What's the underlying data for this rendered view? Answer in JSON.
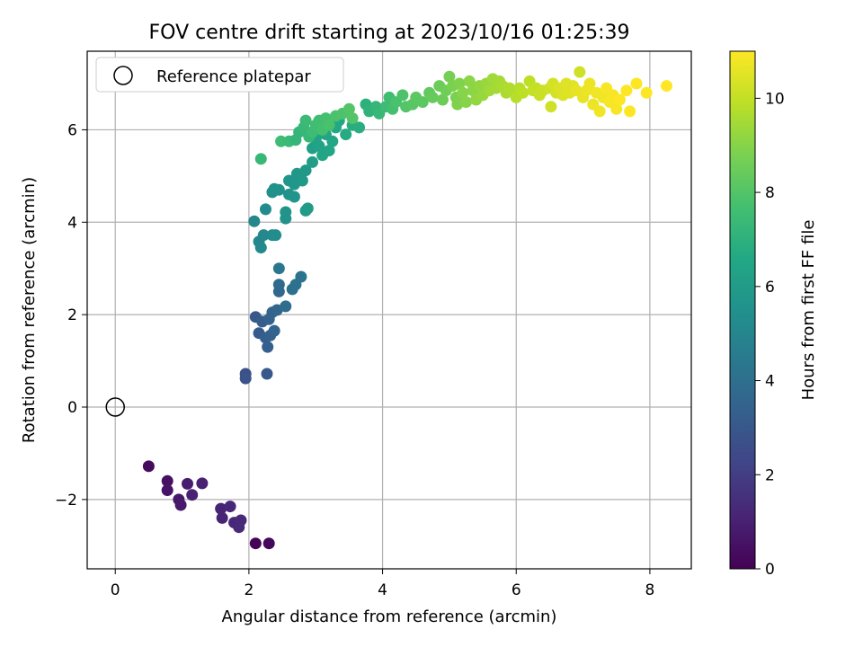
{
  "chart_data": {
    "type": "scatter",
    "title": "FOV centre drift starting at 2023/10/16 01:25:39",
    "xlabel": "Angular distance from reference (arcmin)",
    "ylabel": "Rotation from reference (arcmin)",
    "xlim": [
      -0.42,
      8.62
    ],
    "ylim": [
      -3.5,
      7.7
    ],
    "xticks": [
      0,
      2,
      4,
      6,
      8
    ],
    "yticks": [
      -2,
      0,
      2,
      4,
      6
    ],
    "xtick_labels": [
      "0",
      "2",
      "4",
      "6",
      "8"
    ],
    "ytick_labels": [
      "−2",
      "0",
      "2",
      "4",
      "6"
    ],
    "grid": true,
    "legend": {
      "position": "top-left",
      "entries": [
        {
          "label": "Reference platepar",
          "marker": "open-circle"
        }
      ]
    },
    "reference_point": {
      "x": 0,
      "y": 0
    },
    "colorbar": {
      "label": "Hours from first FF file",
      "colormap": "viridis",
      "range": [
        0,
        11
      ],
      "ticks": [
        0,
        2,
        4,
        6,
        8,
        10
      ],
      "tick_labels": [
        "0",
        "2",
        "4",
        "6",
        "8",
        "10"
      ]
    },
    "points": [
      {
        "x": 0.5,
        "y": -1.28,
        "c": 0.3
      },
      {
        "x": 0.78,
        "y": -1.6,
        "c": 0.5
      },
      {
        "x": 0.78,
        "y": -1.8,
        "c": 0.6
      },
      {
        "x": 0.95,
        "y": -2.0,
        "c": 0.7
      },
      {
        "x": 0.98,
        "y": -2.12,
        "c": 0.8
      },
      {
        "x": 1.08,
        "y": -1.66,
        "c": 0.9
      },
      {
        "x": 1.15,
        "y": -1.9,
        "c": 1.0
      },
      {
        "x": 1.3,
        "y": -1.65,
        "c": 1.0
      },
      {
        "x": 1.58,
        "y": -2.2,
        "c": 1.1
      },
      {
        "x": 1.6,
        "y": -2.4,
        "c": 1.1
      },
      {
        "x": 1.72,
        "y": -2.15,
        "c": 1.2
      },
      {
        "x": 1.78,
        "y": -2.5,
        "c": 1.2
      },
      {
        "x": 1.85,
        "y": -2.6,
        "c": 1.3
      },
      {
        "x": 1.88,
        "y": -2.45,
        "c": 1.3
      },
      {
        "x": 2.1,
        "y": -2.95,
        "c": 0.1
      },
      {
        "x": 2.3,
        "y": -2.95,
        "c": 0.2
      },
      {
        "x": 1.95,
        "y": 0.72,
        "c": 2.7
      },
      {
        "x": 1.95,
        "y": 0.62,
        "c": 2.8
      },
      {
        "x": 2.27,
        "y": 0.72,
        "c": 3.0
      },
      {
        "x": 2.1,
        "y": 1.95,
        "c": 3.0
      },
      {
        "x": 2.15,
        "y": 1.6,
        "c": 3.1
      },
      {
        "x": 2.2,
        "y": 1.85,
        "c": 3.2
      },
      {
        "x": 2.25,
        "y": 1.5,
        "c": 3.3
      },
      {
        "x": 2.28,
        "y": 1.3,
        "c": 3.3
      },
      {
        "x": 2.3,
        "y": 1.9,
        "c": 3.4
      },
      {
        "x": 2.32,
        "y": 1.55,
        "c": 3.4
      },
      {
        "x": 2.38,
        "y": 1.65,
        "c": 3.5
      },
      {
        "x": 2.35,
        "y": 2.05,
        "c": 3.5
      },
      {
        "x": 2.42,
        "y": 2.1,
        "c": 3.6
      },
      {
        "x": 2.45,
        "y": 2.5,
        "c": 3.7
      },
      {
        "x": 2.45,
        "y": 2.65,
        "c": 3.8
      },
      {
        "x": 2.55,
        "y": 2.18,
        "c": 3.9
      },
      {
        "x": 2.65,
        "y": 2.55,
        "c": 4.0
      },
      {
        "x": 2.7,
        "y": 2.65,
        "c": 4.1
      },
      {
        "x": 2.78,
        "y": 2.82,
        "c": 4.2
      },
      {
        "x": 2.45,
        "y": 3.0,
        "c": 4.3
      },
      {
        "x": 2.08,
        "y": 4.02,
        "c": 5.0
      },
      {
        "x": 2.15,
        "y": 3.58,
        "c": 5.0
      },
      {
        "x": 2.18,
        "y": 3.45,
        "c": 5.1
      },
      {
        "x": 2.22,
        "y": 3.72,
        "c": 5.1
      },
      {
        "x": 2.25,
        "y": 4.28,
        "c": 5.2
      },
      {
        "x": 2.35,
        "y": 3.72,
        "c": 5.2
      },
      {
        "x": 2.4,
        "y": 3.72,
        "c": 5.3
      },
      {
        "x": 2.35,
        "y": 4.65,
        "c": 5.4
      },
      {
        "x": 2.38,
        "y": 4.72,
        "c": 5.5
      },
      {
        "x": 2.45,
        "y": 4.7,
        "c": 5.5
      },
      {
        "x": 2.55,
        "y": 4.08,
        "c": 5.6
      },
      {
        "x": 2.55,
        "y": 4.22,
        "c": 5.6
      },
      {
        "x": 2.6,
        "y": 4.6,
        "c": 5.6
      },
      {
        "x": 2.6,
        "y": 4.9,
        "c": 5.7
      },
      {
        "x": 2.68,
        "y": 4.55,
        "c": 5.7
      },
      {
        "x": 2.68,
        "y": 4.82,
        "c": 5.8
      },
      {
        "x": 2.72,
        "y": 5.05,
        "c": 5.8
      },
      {
        "x": 2.8,
        "y": 4.9,
        "c": 5.9
      },
      {
        "x": 2.85,
        "y": 5.12,
        "c": 5.9
      },
      {
        "x": 2.85,
        "y": 4.25,
        "c": 6.0
      },
      {
        "x": 2.88,
        "y": 4.3,
        "c": 6.0
      },
      {
        "x": 2.95,
        "y": 5.3,
        "c": 6.1
      },
      {
        "x": 2.95,
        "y": 5.6,
        "c": 6.2
      },
      {
        "x": 3.0,
        "y": 5.8,
        "c": 6.3
      },
      {
        "x": 3.05,
        "y": 5.65,
        "c": 6.3
      },
      {
        "x": 3.1,
        "y": 5.45,
        "c": 6.4
      },
      {
        "x": 3.15,
        "y": 5.9,
        "c": 6.4
      },
      {
        "x": 3.2,
        "y": 5.55,
        "c": 6.5
      },
      {
        "x": 3.25,
        "y": 5.75,
        "c": 6.5
      },
      {
        "x": 3.3,
        "y": 6.05,
        "c": 6.6
      },
      {
        "x": 3.35,
        "y": 6.2,
        "c": 6.6
      },
      {
        "x": 3.45,
        "y": 5.9,
        "c": 6.7
      },
      {
        "x": 3.55,
        "y": 6.1,
        "c": 6.8
      },
      {
        "x": 3.65,
        "y": 6.05,
        "c": 6.9
      },
      {
        "x": 2.48,
        "y": 5.75,
        "c": 7.5
      },
      {
        "x": 2.6,
        "y": 5.75,
        "c": 7.4
      },
      {
        "x": 2.18,
        "y": 5.37,
        "c": 7.3
      },
      {
        "x": 2.7,
        "y": 5.78,
        "c": 7.2
      },
      {
        "x": 2.75,
        "y": 5.95,
        "c": 7.2
      },
      {
        "x": 2.82,
        "y": 6.05,
        "c": 7.3
      },
      {
        "x": 2.85,
        "y": 6.2,
        "c": 7.4
      },
      {
        "x": 2.9,
        "y": 5.85,
        "c": 7.3
      },
      {
        "x": 2.95,
        "y": 5.95,
        "c": 7.5
      },
      {
        "x": 3.0,
        "y": 6.1,
        "c": 7.6
      },
      {
        "x": 3.05,
        "y": 6.2,
        "c": 7.6
      },
      {
        "x": 3.1,
        "y": 6.0,
        "c": 7.7
      },
      {
        "x": 3.15,
        "y": 6.25,
        "c": 7.7
      },
      {
        "x": 3.2,
        "y": 6.1,
        "c": 7.8
      },
      {
        "x": 3.3,
        "y": 6.3,
        "c": 7.8
      },
      {
        "x": 3.4,
        "y": 6.35,
        "c": 7.9
      },
      {
        "x": 3.5,
        "y": 6.45,
        "c": 8.0
      },
      {
        "x": 3.55,
        "y": 6.25,
        "c": 8.0
      },
      {
        "x": 3.75,
        "y": 6.55,
        "c": 7.0
      },
      {
        "x": 3.8,
        "y": 6.4,
        "c": 7.1
      },
      {
        "x": 3.9,
        "y": 6.5,
        "c": 7.2
      },
      {
        "x": 3.95,
        "y": 6.35,
        "c": 7.3
      },
      {
        "x": 4.05,
        "y": 6.5,
        "c": 7.5
      },
      {
        "x": 4.1,
        "y": 6.7,
        "c": 7.6
      },
      {
        "x": 4.15,
        "y": 6.45,
        "c": 7.7
      },
      {
        "x": 4.2,
        "y": 6.6,
        "c": 7.8
      },
      {
        "x": 4.3,
        "y": 6.75,
        "c": 7.9
      },
      {
        "x": 4.35,
        "y": 6.5,
        "c": 8.0
      },
      {
        "x": 4.45,
        "y": 6.55,
        "c": 8.1
      },
      {
        "x": 4.5,
        "y": 6.7,
        "c": 8.2
      },
      {
        "x": 4.6,
        "y": 6.6,
        "c": 8.2
      },
      {
        "x": 4.7,
        "y": 6.8,
        "c": 8.3
      },
      {
        "x": 4.75,
        "y": 6.7,
        "c": 8.4
      },
      {
        "x": 4.85,
        "y": 6.95,
        "c": 8.5
      },
      {
        "x": 4.9,
        "y": 6.65,
        "c": 8.5
      },
      {
        "x": 4.95,
        "y": 6.85,
        "c": 8.6
      },
      {
        "x": 5.0,
        "y": 7.15,
        "c": 8.7
      },
      {
        "x": 5.05,
        "y": 6.95,
        "c": 8.8
      },
      {
        "x": 5.1,
        "y": 6.7,
        "c": 8.8
      },
      {
        "x": 5.12,
        "y": 6.55,
        "c": 8.9
      },
      {
        "x": 5.15,
        "y": 7.0,
        "c": 8.9
      },
      {
        "x": 5.2,
        "y": 6.8,
        "c": 9.0
      },
      {
        "x": 5.25,
        "y": 6.6,
        "c": 9.0
      },
      {
        "x": 5.3,
        "y": 7.05,
        "c": 9.1
      },
      {
        "x": 5.35,
        "y": 6.85,
        "c": 9.1
      },
      {
        "x": 5.4,
        "y": 6.65,
        "c": 9.2
      },
      {
        "x": 5.45,
        "y": 6.95,
        "c": 9.2
      },
      {
        "x": 5.5,
        "y": 6.75,
        "c": 9.3
      },
      {
        "x": 5.55,
        "y": 7.0,
        "c": 9.3
      },
      {
        "x": 5.6,
        "y": 6.85,
        "c": 9.4
      },
      {
        "x": 5.65,
        "y": 7.1,
        "c": 9.4
      },
      {
        "x": 5.7,
        "y": 6.9,
        "c": 9.5
      },
      {
        "x": 5.75,
        "y": 7.05,
        "c": 9.5
      },
      {
        "x": 5.8,
        "y": 6.95,
        "c": 9.6
      },
      {
        "x": 5.85,
        "y": 6.8,
        "c": 9.6
      },
      {
        "x": 5.9,
        "y": 6.9,
        "c": 9.7
      },
      {
        "x": 5.95,
        "y": 6.85,
        "c": 9.7
      },
      {
        "x": 6.0,
        "y": 6.7,
        "c": 9.8
      },
      {
        "x": 6.05,
        "y": 6.9,
        "c": 9.8
      },
      {
        "x": 6.1,
        "y": 6.8,
        "c": 9.9
      },
      {
        "x": 6.2,
        "y": 7.05,
        "c": 9.9
      },
      {
        "x": 6.25,
        "y": 6.85,
        "c": 10.0
      },
      {
        "x": 6.3,
        "y": 6.9,
        "c": 10.0
      },
      {
        "x": 6.35,
        "y": 6.75,
        "c": 10.1
      },
      {
        "x": 6.4,
        "y": 6.85,
        "c": 10.1
      },
      {
        "x": 6.5,
        "y": 6.9,
        "c": 10.2
      },
      {
        "x": 6.52,
        "y": 6.5,
        "c": 10.2
      },
      {
        "x": 6.55,
        "y": 7.0,
        "c": 10.3
      },
      {
        "x": 6.6,
        "y": 6.8,
        "c": 10.3
      },
      {
        "x": 6.65,
        "y": 6.9,
        "c": 10.4
      },
      {
        "x": 6.7,
        "y": 6.75,
        "c": 10.4
      },
      {
        "x": 6.75,
        "y": 7.0,
        "c": 10.5
      },
      {
        "x": 6.8,
        "y": 6.8,
        "c": 10.5
      },
      {
        "x": 6.85,
        "y": 6.95,
        "c": 10.5
      },
      {
        "x": 6.9,
        "y": 6.85,
        "c": 10.6
      },
      {
        "x": 6.95,
        "y": 7.25,
        "c": 10.2
      },
      {
        "x": 7.0,
        "y": 6.7,
        "c": 10.6
      },
      {
        "x": 7.05,
        "y": 6.85,
        "c": 10.7
      },
      {
        "x": 7.1,
        "y": 7.0,
        "c": 10.7
      },
      {
        "x": 7.15,
        "y": 6.55,
        "c": 10.7
      },
      {
        "x": 7.2,
        "y": 6.8,
        "c": 10.8
      },
      {
        "x": 7.25,
        "y": 6.4,
        "c": 10.8
      },
      {
        "x": 7.3,
        "y": 6.7,
        "c": 10.8
      },
      {
        "x": 7.35,
        "y": 6.9,
        "c": 10.9
      },
      {
        "x": 7.4,
        "y": 6.6,
        "c": 10.9
      },
      {
        "x": 7.45,
        "y": 6.75,
        "c": 10.9
      },
      {
        "x": 7.5,
        "y": 6.45,
        "c": 10.9
      },
      {
        "x": 7.55,
        "y": 6.65,
        "c": 11.0
      },
      {
        "x": 7.65,
        "y": 6.85,
        "c": 11.0
      },
      {
        "x": 7.7,
        "y": 6.4,
        "c": 11.0
      },
      {
        "x": 7.8,
        "y": 7.0,
        "c": 11.0
      },
      {
        "x": 7.95,
        "y": 6.8,
        "c": 11.0
      },
      {
        "x": 8.25,
        "y": 6.95,
        "c": 11.0
      }
    ]
  }
}
